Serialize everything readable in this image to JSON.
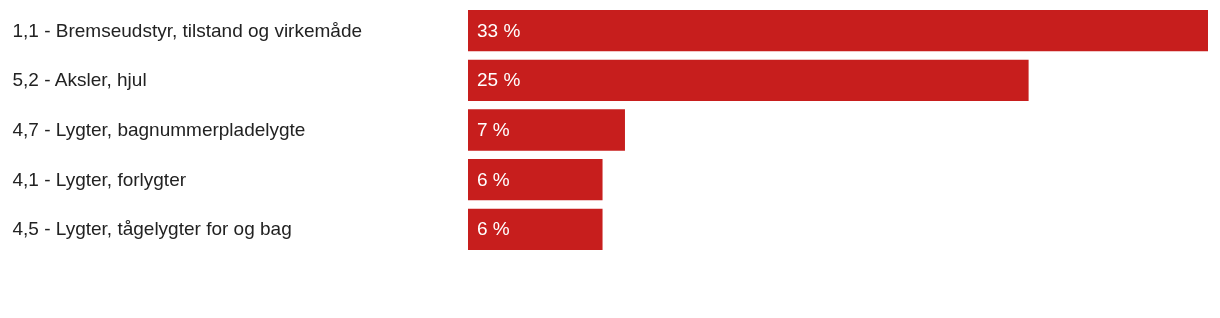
{
  "chart_data": {
    "type": "bar",
    "orientation": "horizontal",
    "categories": [
      "1,1 - Bremseudstyr, tilstand og virkemåde",
      "5,2 - Aksler, hjul",
      "4,7 - Lygter, bagnummerpladelygte",
      "4,1 - Lygter, forlygter",
      "4,5 - Lygter, tågelygter for og bag"
    ],
    "values": [
      33,
      25,
      7,
      6,
      6
    ],
    "color": "#c71e1d",
    "value_labels": [
      "33 %",
      "25 %",
      "7 %",
      "6 %",
      "6 %"
    ],
    "grid": false
  }
}
